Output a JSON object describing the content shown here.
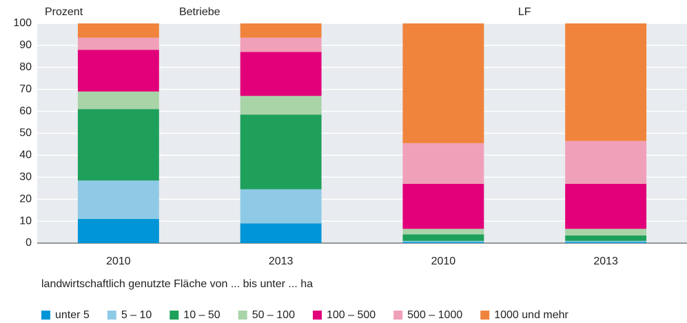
{
  "chart_data": {
    "type": "stacked_bar",
    "ylabel": "Prozent",
    "groups": [
      "Betriebe",
      "LF"
    ],
    "categories": [
      "2010",
      "2013",
      "2010",
      "2013"
    ],
    "xlabel": "landwirtschaftlich genutzte Fläche von ... bis unter ... ha",
    "ylim": [
      0,
      100
    ],
    "yticks": [
      0,
      10,
      20,
      30,
      40,
      50,
      60,
      70,
      80,
      90,
      100
    ],
    "grid": true,
    "series": [
      {
        "name": "unter 5",
        "color": "#0095d6",
        "values": [
          11,
          9,
          0.5,
          0.5
        ]
      },
      {
        "name": "5 – 10",
        "color": "#8ecae6",
        "values": [
          17.5,
          15.5,
          0.5,
          0.5
        ]
      },
      {
        "name": "10 – 50",
        "color": "#1ea05a",
        "values": [
          32.5,
          34,
          3,
          2.5
        ]
      },
      {
        "name": "50 – 100",
        "color": "#a8d4a8",
        "values": [
          8,
          8.5,
          2.5,
          3
        ]
      },
      {
        "name": "100 – 500",
        "color": "#e2007a",
        "values": [
          19,
          20,
          20.5,
          20.5
        ]
      },
      {
        "name": "500 – 1000",
        "color": "#f1a0b9",
        "values": [
          5.5,
          6.5,
          18.5,
          19.5
        ]
      },
      {
        "name": "1000 und mehr",
        "color": "#f0843c",
        "values": [
          6.5,
          6.5,
          54.5,
          53.5
        ]
      }
    ]
  }
}
